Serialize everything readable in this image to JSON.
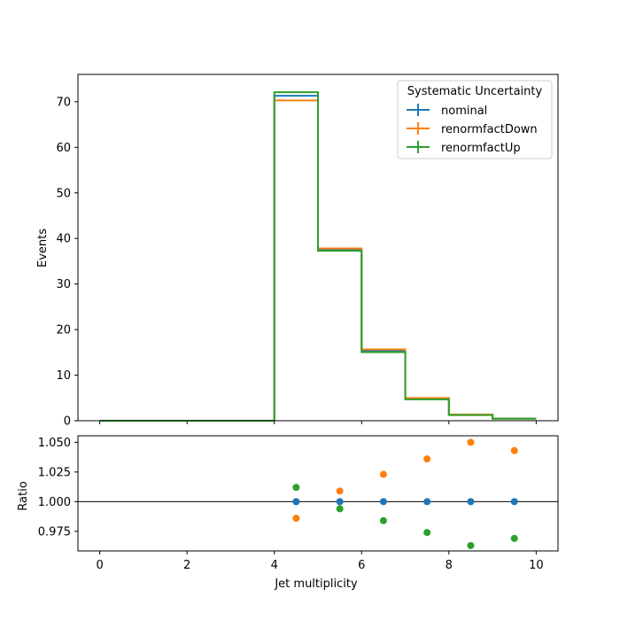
{
  "chart_data": [
    {
      "type": "step",
      "panel": "main",
      "ylabel": "Events",
      "xlim": [
        -0.5,
        10.5
      ],
      "ylim": [
        0,
        76
      ],
      "x_ticks": [
        "0",
        "2",
        "4",
        "6",
        "8",
        "10"
      ],
      "y_ticks": [
        "0",
        "10",
        "20",
        "30",
        "40",
        "50",
        "60",
        "70"
      ],
      "bin_edges": [
        0,
        1,
        2,
        3,
        4,
        5,
        6,
        7,
        8,
        9,
        10
      ],
      "legend": {
        "title": "Systematic Uncertainty",
        "placement": "top-right"
      },
      "series": [
        {
          "name": "nominal",
          "color": "#1f77b4",
          "values": [
            0,
            0,
            0,
            0,
            71.3,
            37.5,
            15.3,
            4.8,
            1.3,
            0.45
          ]
        },
        {
          "name": "renormfactDown",
          "color": "#ff7f0e",
          "values": [
            0,
            0,
            0,
            0,
            70.3,
            37.8,
            15.65,
            4.97,
            1.37,
            0.47
          ]
        },
        {
          "name": "renormfactUp",
          "color": "#2ca02c",
          "values": [
            0,
            0,
            0,
            0,
            72.1,
            37.3,
            15.05,
            4.68,
            1.25,
            0.44
          ]
        }
      ]
    },
    {
      "type": "scatter",
      "panel": "ratio",
      "xlabel": "Jet multiplicity",
      "ylabel": "Ratio",
      "xlim": [
        -0.5,
        10.5
      ],
      "ylim": [
        0.9585,
        1.0555
      ],
      "x_ticks": [
        "0",
        "2",
        "4",
        "6",
        "8",
        "10"
      ],
      "y_ticks": [
        "0.975",
        "1.000",
        "1.025",
        "1.050"
      ],
      "reference_line": 1.0,
      "x": [
        4.5,
        5.5,
        6.5,
        7.5,
        8.5,
        9.5
      ],
      "series": [
        {
          "name": "nominal",
          "color": "#1f77b4",
          "values": [
            1.0,
            1.0,
            1.0,
            1.0,
            1.0,
            1.0
          ]
        },
        {
          "name": "renormfactDown",
          "color": "#ff7f0e",
          "values": [
            0.986,
            1.009,
            1.023,
            1.036,
            1.05,
            1.043
          ]
        },
        {
          "name": "renormfactUp",
          "color": "#2ca02c",
          "values": [
            1.012,
            0.994,
            0.984,
            0.974,
            0.963,
            0.969
          ]
        }
      ]
    }
  ]
}
